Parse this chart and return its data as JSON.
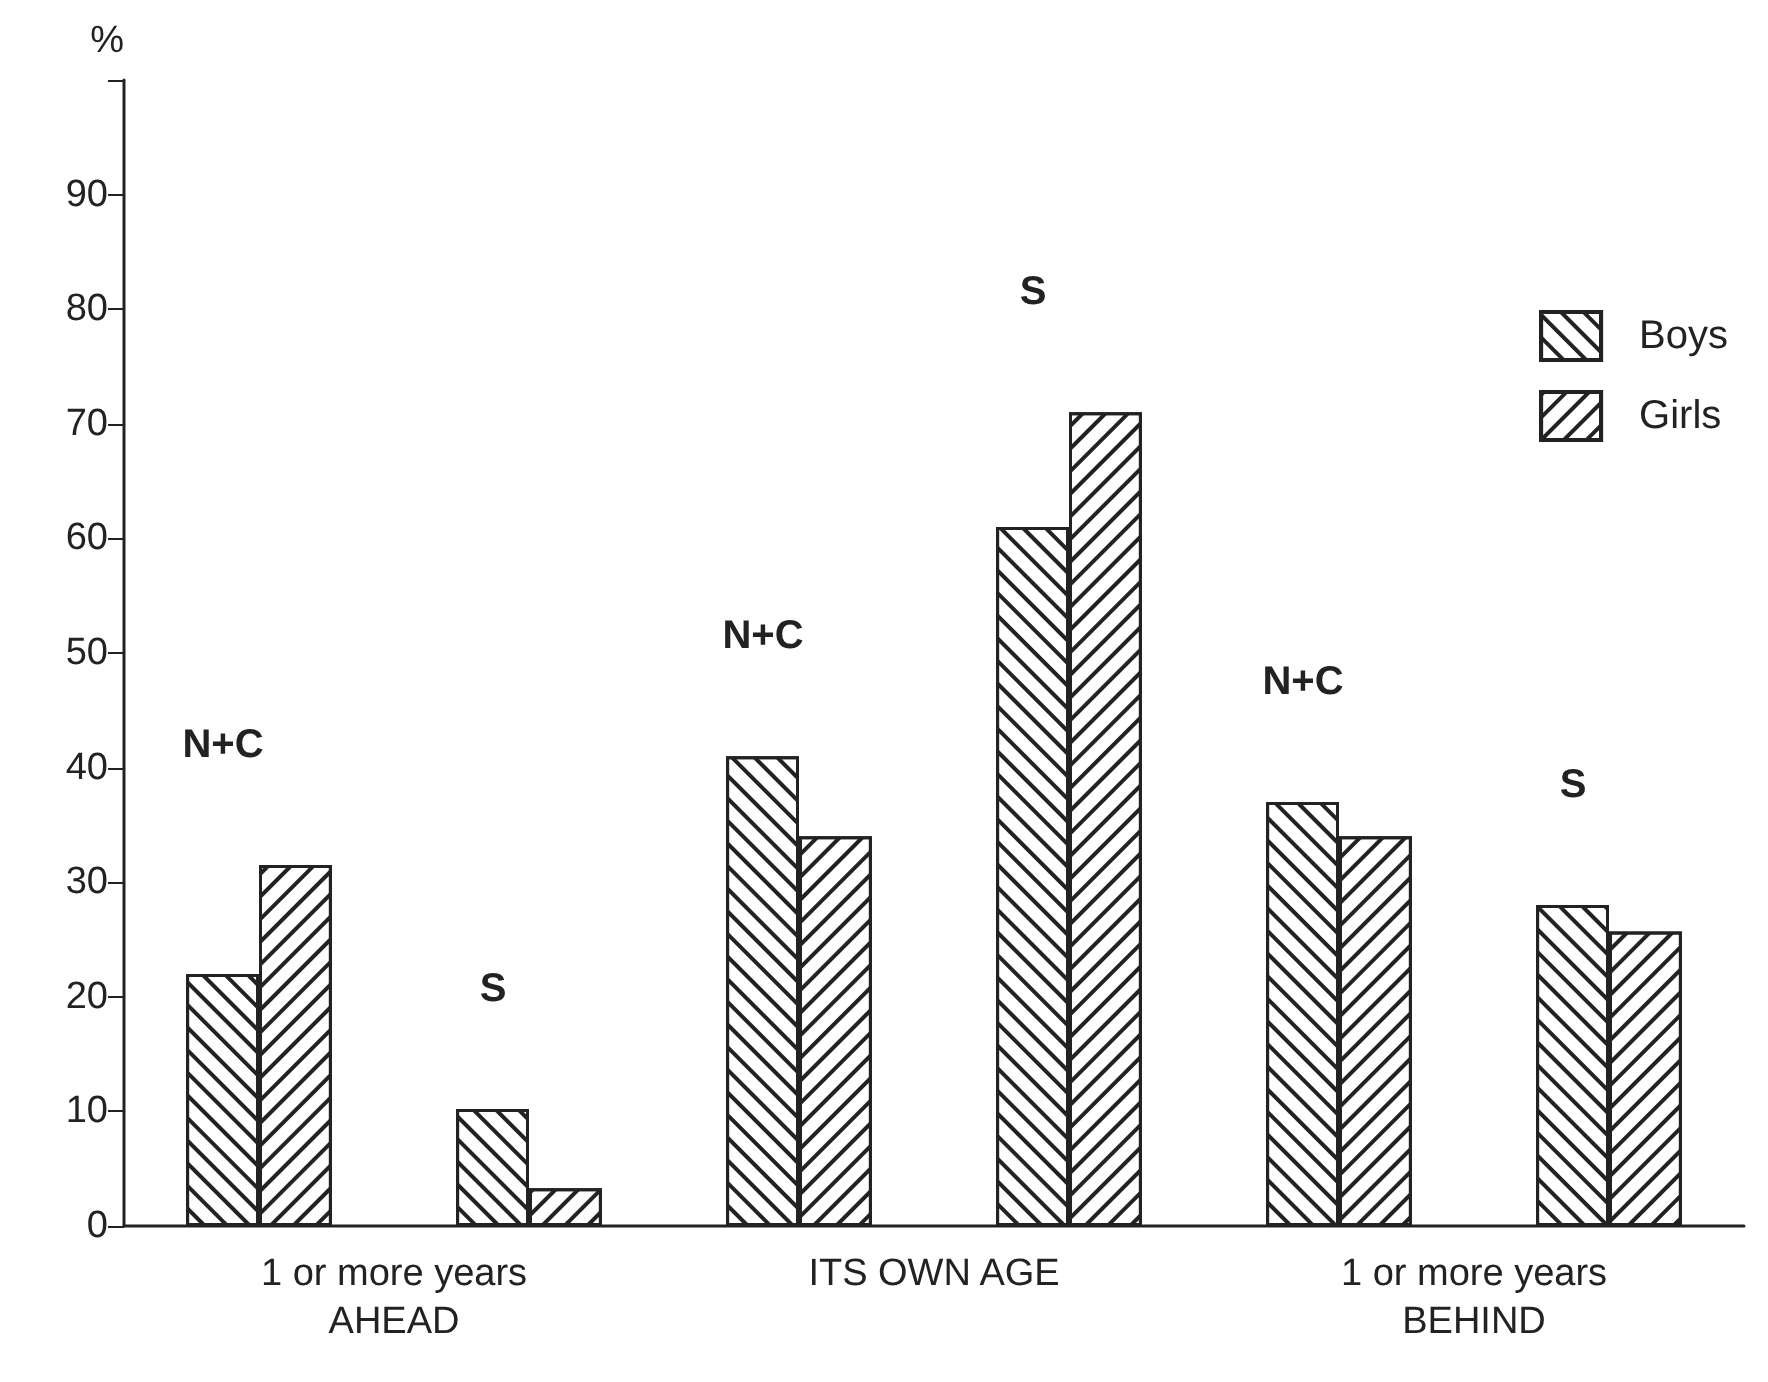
{
  "chart_data": {
    "type": "bar",
    "ylabel": "%",
    "categories": [
      "1 or more years\nAHEAD",
      "ITS OWN AGE",
      "1 or more years\nBEHIND"
    ],
    "series": [
      {
        "name": "Boys",
        "color": "#ffffff",
        "values": [
          22,
          41,
          37
        ]
      },
      {
        "name": "Girls",
        "color": "#ffffff",
        "values": [
          31.5,
          34,
          34
        ]
      },
      {
        "color": "#ffffff",
        "values": [
          10.2,
          61,
          28
        ]
      },
      {
        "color": "#ffffff",
        "values": [
          3.3,
          71,
          25.7
        ]
      }
    ],
    "ylim": [
      0,
      100
    ],
    "yticks": [
      0,
      10,
      20,
      30,
      40,
      50,
      60,
      70,
      80,
      90
    ],
    "annotations": [
      "N+C",
      "S",
      "N+C",
      "S",
      "N+C",
      "S"
    ],
    "grid": false,
    "legend": "top right"
  }
}
